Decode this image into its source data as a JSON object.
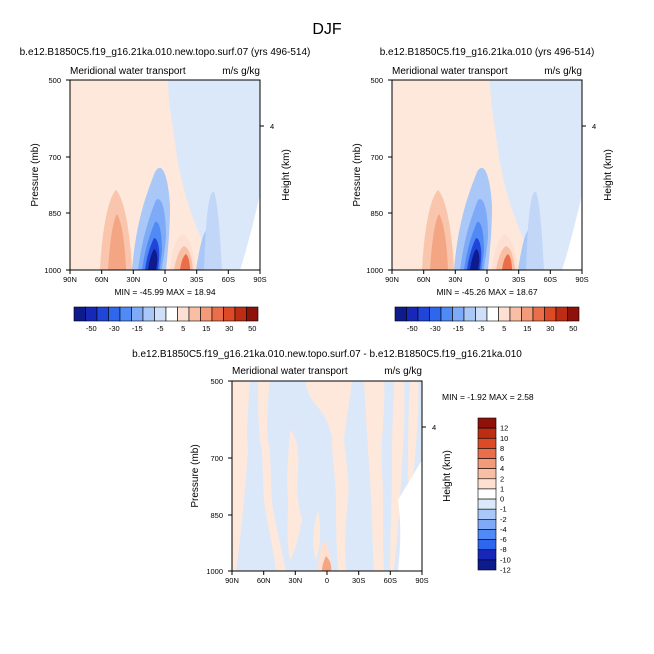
{
  "figure": {
    "season_title": "DJF"
  },
  "colors": {
    "scale_ab": [
      "#0d1b8c",
      "#1728b8",
      "#1f45d9",
      "#2f66ee",
      "#4f8af5",
      "#7eaaf7",
      "#a9c7f7",
      "#cfdff7",
      "#ffffff",
      "#fde0d2",
      "#f9bfa5",
      "#f39a78",
      "#ea6e49",
      "#dc4a27",
      "#bd2d14",
      "#8e120a"
    ],
    "scale_diff": [
      "#0d1b8c",
      "#1728b8",
      "#2f66ee",
      "#4f8af5",
      "#7eaaf7",
      "#a9c7f7",
      "#dbe8f9",
      "#ffffff",
      "#fde0d2",
      "#f9bfa5",
      "#f39a78",
      "#ea6e49",
      "#dc4a27",
      "#bd2d14",
      "#8e120a"
    ]
  },
  "chart_data": [
    {
      "type": "heatmap",
      "title": "b.e12.B1850C5.f19_g16.21ka.010.new.topo.surf.07 (yrs 496-514)",
      "subtitle_left": "Meridional water transport",
      "subtitle_right": "m/s g/kg",
      "xlabel": "",
      "ylabel": "Pressure (mb)",
      "ylabel_right": "Height (km)",
      "x_ticks": [
        "90N",
        "60N",
        "30N",
        "0",
        "30S",
        "60S",
        "90S"
      ],
      "y_ticks": [
        "500",
        "700",
        "850",
        "1000"
      ],
      "y_ticks_right": [
        "4"
      ],
      "stats": "MIN = -45.99   MAX =  18.94",
      "colorbar_labels": [
        "-50",
        "-30",
        "-15",
        "-5",
        "5",
        "15",
        "30",
        "50"
      ],
      "min": -45.99,
      "max": 18.94
    },
    {
      "type": "heatmap",
      "title": "b.e12.B1850C5.f19_g16.21ka.010 (yrs 496-514)",
      "subtitle_left": "Meridional water transport",
      "subtitle_right": "m/s g/kg",
      "xlabel": "",
      "ylabel": "Pressure (mb)",
      "ylabel_right": "Height (km)",
      "x_ticks": [
        "90N",
        "60N",
        "30N",
        "0",
        "30S",
        "60S",
        "90S"
      ],
      "y_ticks": [
        "500",
        "700",
        "850",
        "1000"
      ],
      "y_ticks_right": [
        "4"
      ],
      "stats": "MIN = -45.26   MAX =  18.67",
      "colorbar_labels": [
        "-50",
        "-30",
        "-15",
        "-5",
        "5",
        "15",
        "30",
        "50"
      ],
      "min": -45.26,
      "max": 18.67
    },
    {
      "type": "heatmap",
      "title": "b.e12.B1850C5.f19_g16.21ka.010.new.topo.surf.07 - b.e12.B1850C5.f19_g16.21ka.010",
      "subtitle_left": "Meridional water transport",
      "subtitle_right": "m/s g/kg",
      "xlabel": "",
      "ylabel": "Pressure (mb)",
      "ylabel_right": "Height (km)",
      "x_ticks": [
        "90N",
        "60N",
        "30N",
        "0",
        "30S",
        "60S",
        "90S"
      ],
      "y_ticks": [
        "500",
        "700",
        "850",
        "1000"
      ],
      "y_ticks_right": [
        "4"
      ],
      "stats": "MIN = -1.92   MAX =  2.58",
      "colorbar_labels": [
        "12",
        "10",
        "8",
        "6",
        "4",
        "2",
        "1",
        "0",
        "-1",
        "-2",
        "-4",
        "-6",
        "-8",
        "-10",
        "-12"
      ],
      "min": -1.92,
      "max": 2.58
    }
  ]
}
